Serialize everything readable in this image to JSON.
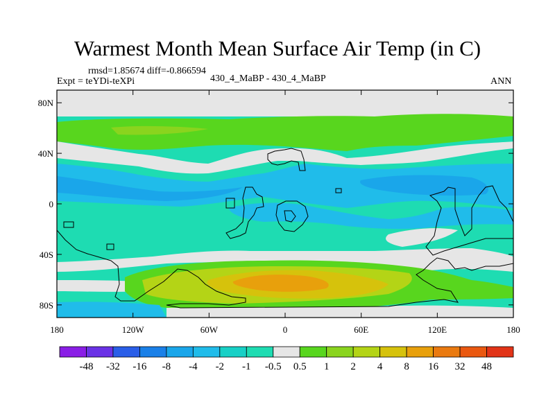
{
  "title": "Warmest Month Mean Surface Air Temp (in C)",
  "stats": {
    "rmsd_label": "rmsd=",
    "rmsd": "1.85674",
    "diff_label": "diff=",
    "diff": "-0.866594"
  },
  "subtitle_left": "Expt = teYDi-teXPi",
  "subtitle_center": "430_4_MaBP - 430_4_MaBP",
  "subtitle_right": "ANN",
  "axes": {
    "lat_ticks": [
      {
        "label": "80N",
        "lat": 80
      },
      {
        "label": "40N",
        "lat": 40
      },
      {
        "label": "0",
        "lat": 0
      },
      {
        "label": "40S",
        "lat": -40
      },
      {
        "label": "80S",
        "lat": -80
      }
    ],
    "lon_ticks": [
      {
        "label": "180",
        "lon": -180
      },
      {
        "label": "120W",
        "lon": -120
      },
      {
        "label": "60W",
        "lon": -60
      },
      {
        "label": "0",
        "lon": 0
      },
      {
        "label": "60E",
        "lon": 60
      },
      {
        "label": "120E",
        "lon": 120
      },
      {
        "label": "180",
        "lon": 180
      }
    ],
    "lon_range": [
      -180,
      180
    ],
    "lat_range": [
      -90,
      90
    ]
  },
  "colorbar": {
    "labels": [
      "-48",
      "-32",
      "-16",
      "-8",
      "-4",
      "-2",
      "-1",
      "-0.5",
      "0.5",
      "1",
      "2",
      "4",
      "8",
      "16",
      "32",
      "48"
    ],
    "colors": [
      "#8a1ee6",
      "#6a32e6",
      "#2a5ee8",
      "#1a80e8",
      "#1aa6ea",
      "#20bcea",
      "#18d0c6",
      "#1edcb2",
      "#e6e6e6",
      "#58d61e",
      "#8ad41e",
      "#b4d416",
      "#d6c20c",
      "#e8a00c",
      "#ea7a10",
      "#ea5810",
      "#e23418"
    ]
  },
  "map_colors": {
    "neutral": "#e6e6e6",
    "cyan": "#1edcb2",
    "light_blue": "#1aa6ea",
    "blue": "#20bcea",
    "green": "#58d61e",
    "yellow_green": "#b4d416",
    "yellow": "#d6c20c",
    "orange": "#e8a00c",
    "land_outline": "#000000"
  }
}
